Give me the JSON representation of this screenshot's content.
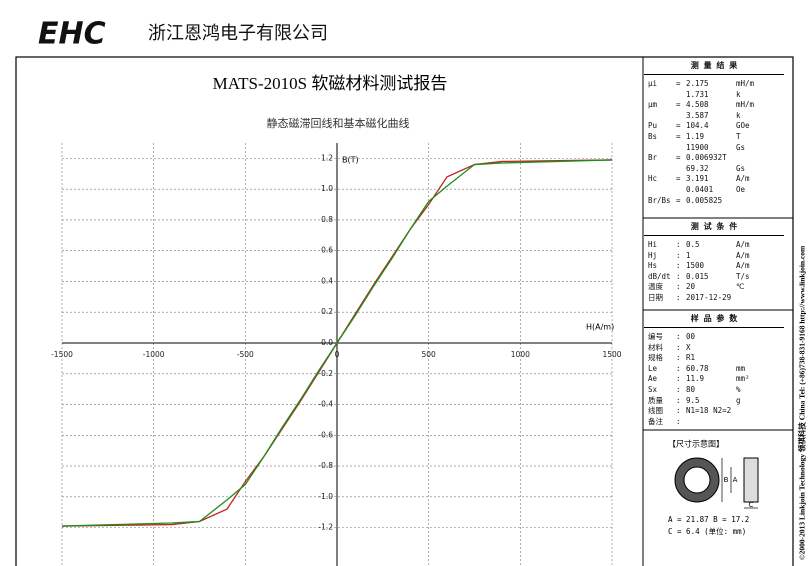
{
  "header": {
    "logo": "EHC",
    "company": "浙江恩鸿电子有限公司"
  },
  "chart_data": {
    "type": "line",
    "title": "MATS-2010S 软磁材料测试报告",
    "subtitle": "静态磁滞回线和基本磁化曲线",
    "x_label": "H(A/m)",
    "y_label": "B(T)",
    "x": [
      -1500,
      -1200,
      -900,
      -750,
      -600,
      -500,
      -400,
      -300,
      -200,
      -100,
      0,
      100,
      200,
      300,
      400,
      500,
      600,
      750,
      900,
      1200,
      1500
    ],
    "series": [
      {
        "color": "#c0281e",
        "values": [
          -1.19,
          -1.185,
          -1.18,
          -1.16,
          -1.08,
          -0.9,
          -0.74,
          -0.56,
          -0.38,
          -0.19,
          0,
          0.19,
          0.38,
          0.56,
          0.74,
          0.9,
          1.08,
          1.16,
          1.18,
          1.185,
          1.19
        ]
      },
      {
        "color": "#1e8c1e",
        "values": [
          -1.19,
          -1.18,
          -1.17,
          -1.16,
          -1.02,
          -0.92,
          -0.74,
          -0.55,
          -0.37,
          -0.18,
          0,
          0.18,
          0.37,
          0.55,
          0.74,
          0.92,
          1.02,
          1.16,
          1.17,
          1.18,
          1.19
        ]
      }
    ],
    "xlim": [
      -1500,
      1500
    ],
    "ylim": [
      -1.3,
      1.3
    ],
    "xticks": [
      -1500,
      -1000,
      -500,
      0,
      500,
      1000,
      1500
    ],
    "yticks": [
      -1.2,
      {
        "value": -1,
        "label": "-1.0"
      },
      -0.8,
      -0.6,
      -0.4,
      -0.2,
      {
        "value": 0,
        "label": "0.0"
      },
      0.2,
      0.4,
      0.6,
      0.8,
      {
        "value": 1,
        "label": "1.0"
      },
      1.2
    ],
    "grid": true
  },
  "panels": [
    {
      "title": "测 量 结 果",
      "rows": [
        {
          "label": "μi",
          "sep": "=",
          "value": "2.175",
          "unit": "mH/m"
        },
        {
          "value": "1.731",
          "unit": "k"
        },
        {
          "label": "μm",
          "sep": "=",
          "value": "4.508",
          "unit": "mH/m"
        },
        {
          "value": "3.587",
          "unit": "k"
        },
        {
          "label": "Pu",
          "sep": "=",
          "value": "104.4",
          "unit": "GOe"
        },
        {
          "label": "Bs",
          "sep": "=",
          "value": "1.19",
          "unit": "T"
        },
        {
          "value": "11900",
          "unit": "Gs"
        },
        {
          "label": "Br",
          "sep": "=",
          "value": "0.006932T"
        },
        {
          "value": "69.32",
          "unit": "Gs"
        },
        {
          "label": "Hc",
          "sep": "=",
          "value": "3.191",
          "unit": "A/m"
        },
        {
          "value": "0.0401",
          "unit": "Oe"
        },
        {
          "label": "Br/Bs",
          "sep": "=",
          "value": "0.005825"
        }
      ]
    },
    {
      "title": "测 试 条 件",
      "rows": [
        {
          "label": "Hi",
          "sep": ":",
          "value": "0.5",
          "unit": "A/m"
        },
        {
          "label": "Hj",
          "sep": ":",
          "value": "1",
          "unit": "A/m"
        },
        {
          "label": "Hs",
          "sep": ":",
          "value": "1500",
          "unit": "A/m"
        },
        {
          "label": "dB/dt",
          "sep": ":",
          "value": "0.015",
          "unit": "T/s"
        },
        {
          "label": "温度",
          "sep": ":",
          "value": "20",
          "unit": "℃"
        },
        {
          "label": "日期",
          "sep": ":",
          "value": "2017-12-29"
        }
      ]
    },
    {
      "title": "样 品 参 数",
      "rows": [
        {
          "label": "编号",
          "sep": ":",
          "value": "00"
        },
        {
          "label": "材料",
          "sep": ":",
          "value": "X"
        },
        {
          "label": "规格",
          "sep": ":",
          "value": "R1"
        },
        {
          "label": "Le",
          "sep": ":",
          "value": "60.78",
          "unit": "mm"
        },
        {
          "label": "Ae",
          "sep": ":",
          "value": "11.9",
          "unit": "mm²"
        },
        {
          "label": "Sx",
          "sep": ":",
          "value": "80",
          "unit": "%"
        },
        {
          "label": "质量",
          "sep": ":",
          "value": "9.5",
          "unit": "g"
        },
        {
          "label": "线圈",
          "sep": ":",
          "value": "N1=18 N2=2"
        },
        {
          "label": "备注",
          "sep": ":"
        }
      ]
    }
  ],
  "diagram": {
    "title": "【尺寸示意图】",
    "label_b": "B",
    "label_a": "A",
    "label_c": "C",
    "line1": "A = 21.87  B = 17.2",
    "line2": "C = 6.4   (单位: mm)"
  },
  "side_text": "©2000-2013 Linkjoin Technology 领祺科技 China  Tel: (+86)738-831-9168  http://www.linkjoin.com"
}
